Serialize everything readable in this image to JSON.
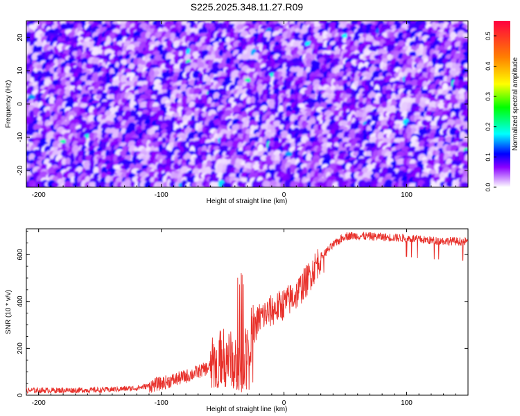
{
  "title": "S225.2025.348.11.27.R09",
  "chart_data": [
    {
      "type": "heatmap",
      "xlabel": "Height of straight line (km)",
      "ylabel": "Frequency (Hz)",
      "xlim": [
        -210,
        150
      ],
      "ylim": [
        -25,
        25
      ],
      "xticks": [
        -200,
        -100,
        0,
        100
      ],
      "xtick_labels": [
        "-200",
        "-100",
        "0",
        "100"
      ],
      "yticks": [
        -20,
        -10,
        0,
        10,
        20
      ],
      "ytick_labels": [
        "-20",
        "-10",
        "0",
        "10",
        "20"
      ],
      "colorbar": {
        "label": "Normalized spectral amplitude",
        "range": [
          0,
          0.55
        ],
        "ticks": [
          0,
          0.1,
          0.2,
          0.3,
          0.4,
          0.5
        ],
        "tick_labels": [
          "0.0",
          "0.1",
          "0.2",
          "0.3",
          "0.4",
          "0.5"
        ],
        "colors": [
          "#ffffff",
          "#8b00ff",
          "#0000ff",
          "#00ffff",
          "#00ff00",
          "#ffff00",
          "#ff8000",
          "#ff0040"
        ]
      },
      "description_values": {
        "background_amplitude_range": [
          0.0,
          0.1
        ],
        "peak_amplitude": 0.22
      }
    },
    {
      "type": "line",
      "xlabel": "Height of straight line (km)",
      "ylabel": "SNR (10 * v/v)",
      "xlim": [
        -210,
        150
      ],
      "ylim": [
        0,
        710
      ],
      "xticks": [
        -200,
        -100,
        0,
        100
      ],
      "xtick_labels": [
        "-200",
        "-100",
        "0",
        "100"
      ],
      "yticks": [
        0,
        200,
        400,
        600
      ],
      "ytick_labels": [
        "0",
        "200",
        "400",
        "600"
      ],
      "series": [
        {
          "color": "#e8302a",
          "x": [
            -210,
            -150,
            -120,
            -100,
            -80,
            -60,
            -50,
            -40,
            -35,
            -30,
            -20,
            -10,
            0,
            10,
            20,
            30,
            40,
            50,
            60,
            80,
            100,
            120,
            150
          ],
          "y": [
            20,
            22,
            30,
            50,
            80,
            120,
            170,
            150,
            120,
            220,
            330,
            360,
            390,
            430,
            500,
            590,
            640,
            680,
            680,
            675,
            670,
            660,
            655
          ]
        }
      ]
    }
  ]
}
